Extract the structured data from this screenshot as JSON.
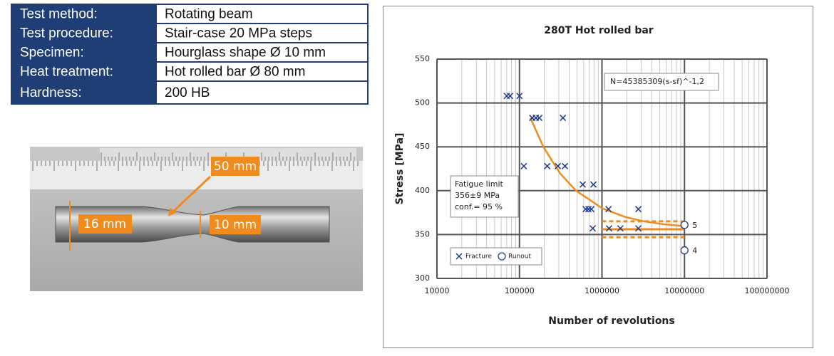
{
  "table": {
    "rows": [
      [
        "Test method:",
        "Rotating beam"
      ],
      [
        "Test procedure:",
        "Stair-case 20 MPa steps"
      ],
      [
        "Specimen:",
        "Hourglass shape Ø 10 mm"
      ],
      [
        "Heat treatment:",
        "Hot rolled bar Ø 80 mm"
      ],
      [
        "Hardness:",
        "200 HB"
      ]
    ]
  },
  "photo": {
    "labels": [
      "50 mm",
      "16 mm",
      "10 mm"
    ]
  },
  "chart_data": {
    "type": "scatter",
    "title": "280T Hot rolled bar",
    "xlabel": "Number of revolutions",
    "ylabel": "Stress [MPa]",
    "xscale": "log",
    "xlim": [
      10000,
      100000000
    ],
    "xticks": [
      10000,
      100000,
      1000000,
      10000000,
      100000000
    ],
    "ylim": [
      300,
      550
    ],
    "yticks": [
      300,
      350,
      400,
      450,
      500,
      550
    ],
    "grid": true,
    "legend": "lower left",
    "series": [
      {
        "name": "Fracture",
        "marker": "x",
        "color": "#1f3a8a",
        "x": [
          70000,
          77000,
          100000,
          143000,
          158000,
          174000,
          336000,
          113000,
          217000,
          292000,
          356000,
          585000,
          788000,
          634000,
          686000,
          743000,
          1200000,
          2760000,
          773000,
          1220000,
          1670000,
          2760000
        ],
        "values": [
          508,
          508,
          508,
          483,
          483,
          483,
          483,
          428,
          428,
          428,
          428,
          407,
          407,
          379,
          379,
          379,
          379,
          379,
          357,
          357,
          357,
          357
        ]
      },
      {
        "name": "Runout",
        "marker": "o",
        "color": "#1f3a8a",
        "x": [
          10000000,
          10000000
        ],
        "values": [
          361,
          332
        ],
        "point_labels": [
          "5",
          "4"
        ]
      }
    ],
    "fit_curve": {
      "color": "#f08c1e",
      "x": [
        135600,
        194400,
        308800,
        484000,
        1001700,
        1912600,
        3249600,
        5287000,
        10000000
      ],
      "values": [
        483,
        450,
        420,
        400,
        380,
        370,
        365,
        362,
        359.5
      ]
    },
    "fatigue_limit": {
      "color": "#f08c1e",
      "x": [
        1000000,
        10000000
      ],
      "value": 356,
      "upper": 365,
      "lower": 347
    },
    "annotations": {
      "equation": "N=45385309(s-sf)^-1,2",
      "fatigue_box": [
        "Fatigue limit",
        "356±9 MPa",
        "conf.= 95 %"
      ]
    }
  }
}
